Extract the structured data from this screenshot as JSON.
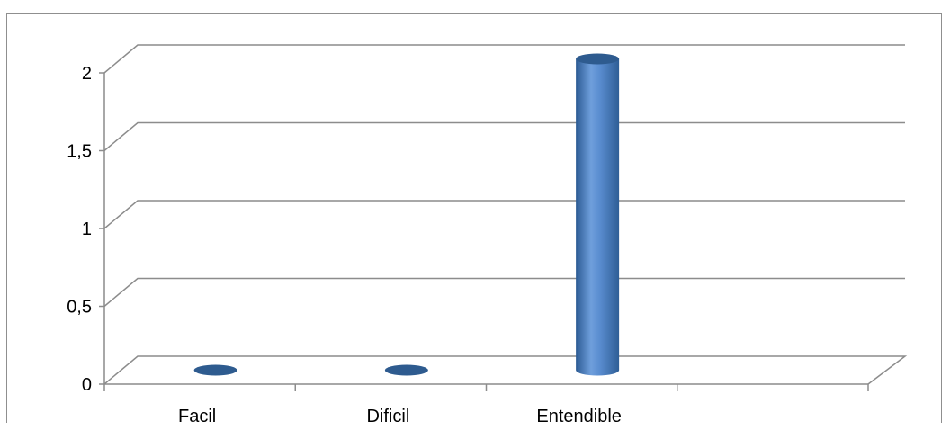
{
  "chart_data": {
    "type": "bar",
    "style": "3d-cylinder",
    "categories": [
      "Facil",
      "Dificil",
      "Entendible",
      ""
    ],
    "series": [
      {
        "values": [
          0,
          0,
          2,
          null
        ]
      }
    ],
    "yticks": [
      "0",
      "0,5",
      "1",
      "1,5",
      "2"
    ],
    "ylim": [
      0,
      2
    ],
    "grid": true,
    "legend": "none",
    "title": "",
    "xlabel": "",
    "ylabel": "",
    "colors": {
      "bar_body": "#4f81bd",
      "bar_top": "#2e5b8f",
      "grid": "#8c8c8c",
      "text": "#000000"
    }
  }
}
